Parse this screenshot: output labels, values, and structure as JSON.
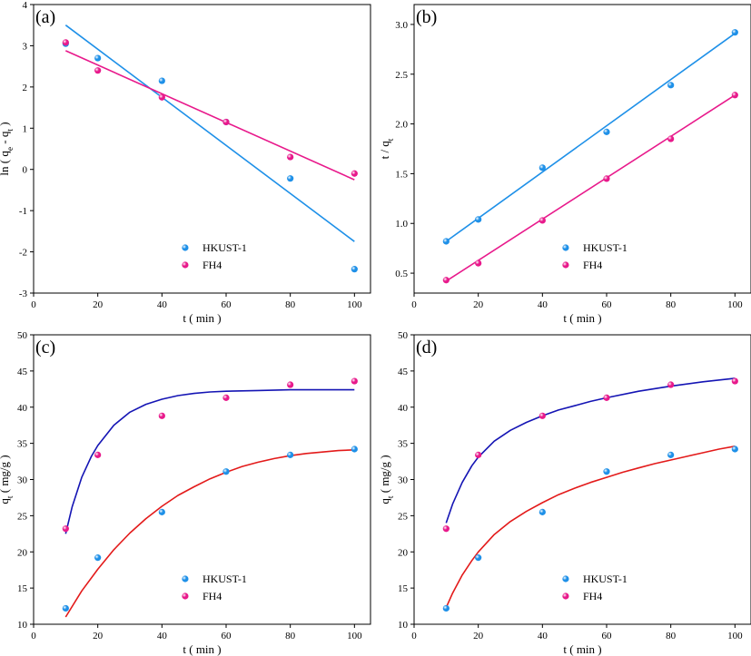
{
  "chart_data": [
    {
      "panel_label": "(a)",
      "type": "scatter",
      "xlabel": "t ( min )",
      "ylabel": "ln ( q_e - q_t )",
      "xlim": [
        0,
        105
      ],
      "ylim": [
        -3,
        4
      ],
      "xticks": [
        0,
        20,
        40,
        60,
        80,
        100
      ],
      "yticks": [
        -3,
        -2,
        -1,
        0,
        1,
        2,
        3,
        4
      ],
      "ytick_decimals": 0,
      "legend_position": "bottom-center",
      "series": [
        {
          "name": "HKUST-1",
          "color": "#1e90e8",
          "x": [
            10,
            20,
            40,
            60,
            80,
            100
          ],
          "y": [
            3.05,
            2.7,
            2.15,
            1.15,
            -0.22,
            -2.42
          ],
          "fit": {
            "kind": "line",
            "x": [
              10,
              100
            ],
            "y": [
              3.5,
              -1.75
            ]
          }
        },
        {
          "name": "FH4",
          "color": "#e8198b",
          "x": [
            10,
            20,
            40,
            60,
            80,
            100
          ],
          "y": [
            3.08,
            2.4,
            1.75,
            1.15,
            0.3,
            -0.1
          ],
          "fit": {
            "kind": "line",
            "x": [
              10,
              100
            ],
            "y": [
              2.88,
              -0.25
            ]
          }
        }
      ]
    },
    {
      "panel_label": "(b)",
      "type": "scatter",
      "xlabel": "t ( min )",
      "ylabel": "t / q_t",
      "xlim": [
        0,
        105
      ],
      "ylim": [
        0.3,
        3.2
      ],
      "xticks": [
        0,
        20,
        40,
        60,
        80,
        100
      ],
      "yticks": [
        0.5,
        1.0,
        1.5,
        2.0,
        2.5,
        3.0
      ],
      "ytick_decimals": 1,
      "legend_position": "bottom-center",
      "series": [
        {
          "name": "HKUST-1",
          "color": "#1e90e8",
          "x": [
            10,
            20,
            40,
            60,
            80,
            100
          ],
          "y": [
            0.82,
            1.04,
            1.56,
            1.92,
            2.39,
            2.92
          ],
          "fit": {
            "kind": "line",
            "x": [
              10,
              100
            ],
            "y": [
              0.82,
              2.91
            ]
          }
        },
        {
          "name": "FH4",
          "color": "#e8198b",
          "x": [
            10,
            20,
            40,
            60,
            80,
            100
          ],
          "y": [
            0.43,
            0.6,
            1.03,
            1.45,
            1.85,
            2.29
          ],
          "fit": {
            "kind": "line",
            "x": [
              10,
              100
            ],
            "y": [
              0.42,
              2.29
            ]
          }
        }
      ]
    },
    {
      "panel_label": "(c)",
      "type": "scatter",
      "xlabel": "t ( min )",
      "ylabel": "q_t ( mg/g )",
      "xlim": [
        0,
        105
      ],
      "ylim": [
        10,
        50
      ],
      "xticks": [
        0,
        20,
        40,
        60,
        80,
        100
      ],
      "yticks": [
        10,
        15,
        20,
        25,
        30,
        35,
        40,
        45,
        50
      ],
      "ytick_decimals": 0,
      "legend_position": "bottom-center",
      "series": [
        {
          "name": "HKUST-1",
          "color": "#1e90e8",
          "x": [
            10,
            20,
            40,
            60,
            80,
            100
          ],
          "y": [
            12.2,
            19.2,
            25.5,
            31.1,
            33.4,
            34.2
          ],
          "fit": {
            "kind": "curve",
            "color": "#e31a1a",
            "x": [
              10,
              15,
              20,
              25,
              30,
              35,
              40,
              45,
              50,
              55,
              60,
              65,
              70,
              75,
              80,
              85,
              90,
              95,
              100
            ],
            "y": [
              11.0,
              14.6,
              17.6,
              20.3,
              22.6,
              24.6,
              26.3,
              27.8,
              29.0,
              30.1,
              31.0,
              31.8,
              32.4,
              32.9,
              33.3,
              33.6,
              33.8,
              34.0,
              34.1
            ]
          }
        },
        {
          "name": "FH4",
          "color": "#e8198b",
          "x": [
            10,
            20,
            40,
            60,
            80,
            100
          ],
          "y": [
            23.2,
            33.4,
            38.8,
            41.3,
            43.1,
            43.6
          ],
          "fit": {
            "kind": "curve",
            "color": "#1414b4",
            "x": [
              10,
              12,
              15,
              18,
              20,
              25,
              30,
              35,
              40,
              45,
              50,
              55,
              60,
              70,
              80,
              90,
              100
            ],
            "y": [
              22.5,
              26.2,
              30.3,
              33.2,
              34.7,
              37.5,
              39.3,
              40.4,
              41.1,
              41.6,
              41.9,
              42.1,
              42.2,
              42.3,
              42.4,
              42.4,
              42.4
            ]
          }
        }
      ]
    },
    {
      "panel_label": "(d)",
      "type": "scatter",
      "xlabel": "t ( min )",
      "ylabel": "q_t ( mg/g )",
      "xlim": [
        0,
        105
      ],
      "ylim": [
        10,
        50
      ],
      "xticks": [
        0,
        20,
        40,
        60,
        80,
        100
      ],
      "yticks": [
        10,
        15,
        20,
        25,
        30,
        35,
        40,
        45,
        50
      ],
      "ytick_decimals": 0,
      "legend_position": "bottom-center",
      "series": [
        {
          "name": "HKUST-1",
          "color": "#1e90e8",
          "x": [
            10,
            20,
            40,
            60,
            80,
            100
          ],
          "y": [
            12.2,
            19.2,
            25.5,
            31.1,
            33.4,
            34.2
          ],
          "fit": {
            "kind": "curve",
            "color": "#e31a1a",
            "x": [
              10,
              12,
              15,
              18,
              20,
              25,
              30,
              35,
              40,
              45,
              50,
              55,
              60,
              65,
              70,
              75,
              80,
              85,
              90,
              95,
              100
            ],
            "y": [
              12.3,
              14.3,
              16.8,
              18.8,
              20.0,
              22.4,
              24.2,
              25.6,
              26.8,
              27.9,
              28.8,
              29.6,
              30.3,
              31.0,
              31.6,
              32.2,
              32.7,
              33.2,
              33.7,
              34.2,
              34.6
            ]
          }
        },
        {
          "name": "FH4",
          "color": "#e8198b",
          "x": [
            10,
            20,
            40,
            60,
            80,
            100
          ],
          "y": [
            23.2,
            33.4,
            38.8,
            41.3,
            43.1,
            43.6
          ],
          "fit": {
            "kind": "curve",
            "color": "#1414b4",
            "x": [
              10,
              12,
              15,
              18,
              20,
              25,
              30,
              35,
              40,
              45,
              50,
              55,
              60,
              70,
              80,
              90,
              100
            ],
            "y": [
              24.0,
              26.6,
              29.6,
              31.9,
              33.1,
              35.3,
              36.8,
              37.9,
              38.8,
              39.6,
              40.2,
              40.8,
              41.3,
              42.2,
              42.9,
              43.5,
              44.0
            ]
          }
        }
      ]
    }
  ]
}
